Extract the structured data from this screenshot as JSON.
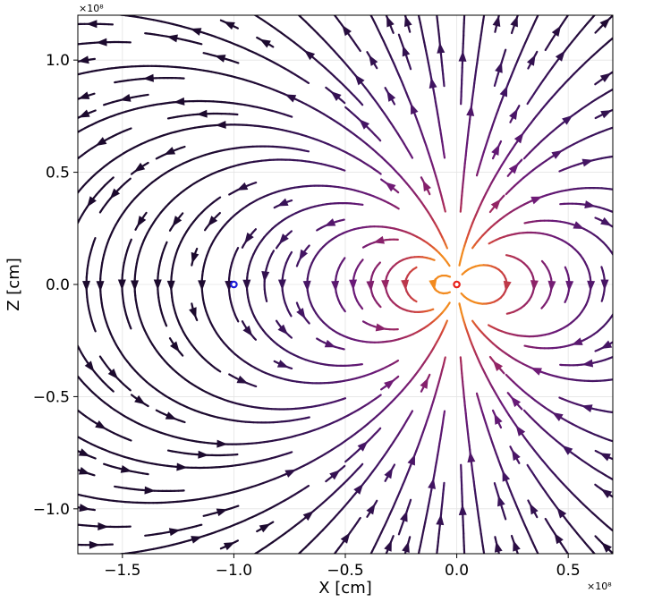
{
  "chart_data": {
    "type": "streamplot",
    "xlabel": "X [cm]",
    "ylabel": "Z [cm]",
    "x_exponent_label": "×10⁸",
    "y_exponent_label": "×10⁸",
    "xlim": [
      -1.7,
      0.7
    ],
    "ylim": [
      -1.2,
      1.2
    ],
    "x_ticks": [
      -1.5,
      -1.0,
      -0.5,
      0.0,
      0.5
    ],
    "y_ticks": [
      -1.0,
      -0.5,
      0.0,
      0.5,
      1.0
    ],
    "x_tick_labels": [
      "−1.5",
      "−1.0",
      "−0.5",
      "0.0",
      "0.5"
    ],
    "y_tick_labels": [
      "−1.0",
      "−0.5",
      "0.0",
      "0.5",
      "1.0"
    ],
    "grid": true,
    "field": "dipole",
    "dipole_position": [
      0.0,
      0.0
    ],
    "dipole_moment_direction": "+z",
    "markers": [
      {
        "name": "red-circle-marker",
        "x": 0.0,
        "y": 0.0,
        "color": "#e8201a"
      },
      {
        "name": "blue-circle-marker",
        "x": -1.0,
        "y": 0.0,
        "color": "#1a1ad8"
      }
    ],
    "colormap": "inferno",
    "colormap_stops": [
      "#1c0a2e",
      "#3e1460",
      "#6a1a78",
      "#a1285f",
      "#d4463a",
      "#f28a1e"
    ]
  }
}
